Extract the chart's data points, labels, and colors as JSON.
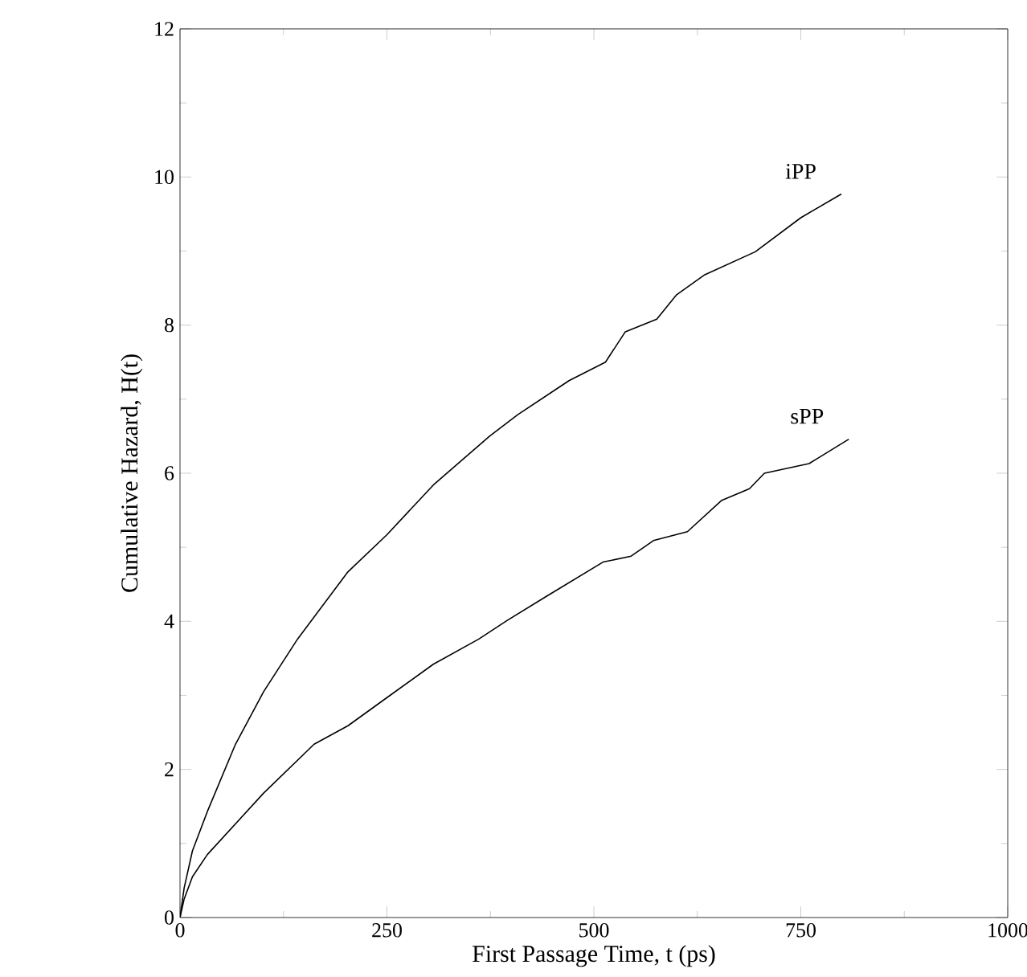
{
  "chart_data": {
    "type": "line",
    "xlabel": "First Passage Time, t (ps)",
    "ylabel": "Cumulative Hazard, H(t)",
    "xlim": [
      0,
      1000
    ],
    "ylim": [
      0,
      12
    ],
    "xticks": [
      0,
      250,
      500,
      750,
      1000
    ],
    "yticks": [
      0,
      2,
      4,
      6,
      8,
      10,
      12
    ],
    "legend": false,
    "marker": "none",
    "line_style": "solid",
    "series": [
      {
        "name": "iPP",
        "color": "#000000",
        "x": [
          0,
          5,
          15,
          33,
          67,
          101,
          142,
          203,
          250,
          306,
          374,
          408,
          470,
          514,
          538,
          576,
          600,
          634,
          695,
          750,
          799
        ],
        "values": [
          0,
          0.4,
          0.9,
          1.43,
          2.34,
          3.05,
          3.76,
          4.67,
          5.17,
          5.84,
          6.5,
          6.79,
          7.25,
          7.5,
          7.91,
          8.08,
          8.41,
          8.68,
          8.99,
          9.45,
          9.77
        ]
      },
      {
        "name": "sPP",
        "color": "#000000",
        "x": [
          0,
          5,
          15,
          33,
          101,
          162,
          203,
          250,
          306,
          361,
          395,
          443,
          511,
          545,
          572,
          613,
          654,
          688,
          706,
          760,
          808
        ],
        "values": [
          0,
          0.25,
          0.55,
          0.85,
          1.68,
          2.34,
          2.59,
          2.97,
          3.42,
          3.76,
          4.01,
          4.34,
          4.8,
          4.88,
          5.09,
          5.21,
          5.63,
          5.79,
          6.0,
          6.13,
          6.46
        ]
      }
    ]
  }
}
